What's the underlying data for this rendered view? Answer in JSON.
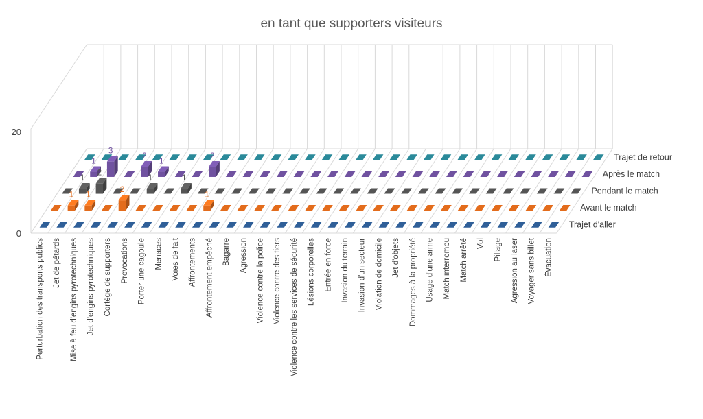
{
  "chart_data": {
    "type": "bar",
    "subtype": "3d-column",
    "title": "en tant que supporters visiteurs",
    "yticks": [
      0,
      20
    ],
    "ylim": [
      0,
      20
    ],
    "grid": true,
    "legend": "right",
    "categories": [
      "Perturbation des transports publics",
      "Jet de pétards",
      "Mise à feu d'engins pyrotechniques",
      "Jet d'engins pyrotechniques",
      "Cortège de supporters",
      "Provocations",
      "Porter une cagoule",
      "Menaces",
      "Voies de fait",
      "Affrontements",
      "Affrontement empêché",
      "Bagarre",
      "Agression",
      "Violence contre la police",
      "Violence contre des tiers",
      "Violence contre les services de sécurité",
      "Lésions corporelles",
      "Entrée en force",
      "Invasion du terrain",
      "Invasion d'un secteur",
      "Violation de domicile",
      "Jet d'objets",
      "Dommages à la propriété",
      "Usage d'une arme",
      "Match interrompu",
      "Match arrêté",
      "Vol",
      "Pillage",
      "Agression au laser",
      "Voyager sans billet",
      "Évacuation"
    ],
    "series": [
      {
        "name": "Trajet d'aller",
        "color": "#2f5f98",
        "values": [
          0,
          0,
          0,
          0,
          0,
          0,
          0,
          0,
          0,
          0,
          0,
          0,
          0,
          0,
          0,
          0,
          0,
          0,
          0,
          0,
          0,
          0,
          0,
          0,
          0,
          0,
          0,
          0,
          0,
          0,
          0
        ]
      },
      {
        "name": "Avant le match",
        "color": "#e36c1c",
        "values": [
          0,
          1,
          1,
          0,
          2,
          0,
          0,
          0,
          0,
          1,
          0,
          0,
          0,
          0,
          0,
          0,
          0,
          0,
          0,
          0,
          0,
          0,
          0,
          0,
          0,
          0,
          0,
          0,
          0,
          0,
          0
        ]
      },
      {
        "name": "Pendant le match",
        "color": "#555555",
        "values": [
          0,
          1,
          2,
          0,
          0,
          1,
          0,
          1,
          0,
          0,
          0,
          0,
          0,
          0,
          0,
          0,
          0,
          0,
          0,
          0,
          0,
          0,
          0,
          0,
          0,
          0,
          0,
          0,
          0,
          0,
          0
        ]
      },
      {
        "name": "Après le match",
        "color": "#7052a0",
        "values": [
          0,
          1,
          3,
          0,
          2,
          1,
          0,
          0,
          2,
          0,
          0,
          0,
          0,
          0,
          0,
          0,
          0,
          0,
          0,
          0,
          0,
          0,
          0,
          0,
          0,
          0,
          0,
          0,
          0,
          0,
          0
        ]
      },
      {
        "name": "Trajet de retour",
        "color": "#2b8a9a",
        "values": [
          0,
          0,
          0,
          0,
          0,
          0,
          0,
          0,
          0,
          0,
          0,
          0,
          0,
          0,
          0,
          0,
          0,
          0,
          0,
          0,
          0,
          0,
          0,
          0,
          0,
          0,
          0,
          0,
          0,
          0,
          0
        ]
      }
    ]
  }
}
